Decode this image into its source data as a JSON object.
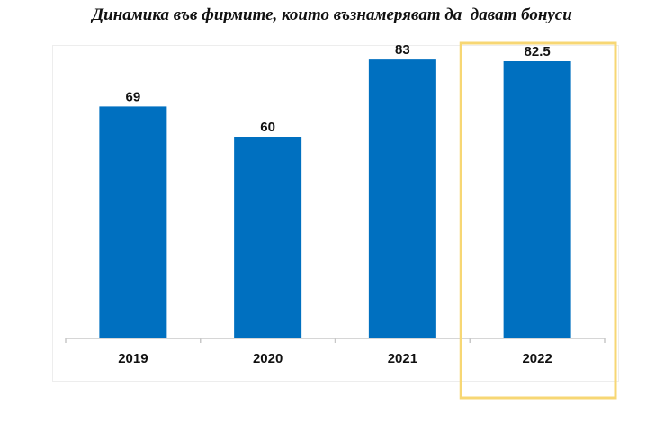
{
  "title": "Динамика във фирмите, които възнамеряват да  дават бонуси",
  "colors": {
    "bar": "#0070c0",
    "highlight": "#f7d774",
    "axis": "#c8c8c8"
  },
  "chart_data": {
    "type": "bar",
    "title": "Динамика във фирмите, които възнамеряват да  дават бонуси",
    "categories": [
      "2019",
      "2020",
      "2021",
      "2022"
    ],
    "values": [
      69,
      60,
      83,
      82.5
    ],
    "data_labels": [
      "69",
      "60",
      "83",
      "82.5"
    ],
    "highlighted_category": "2022",
    "xlabel": "",
    "ylabel": "",
    "ylim": [
      0,
      90
    ],
    "grid": false,
    "legend": "none"
  }
}
